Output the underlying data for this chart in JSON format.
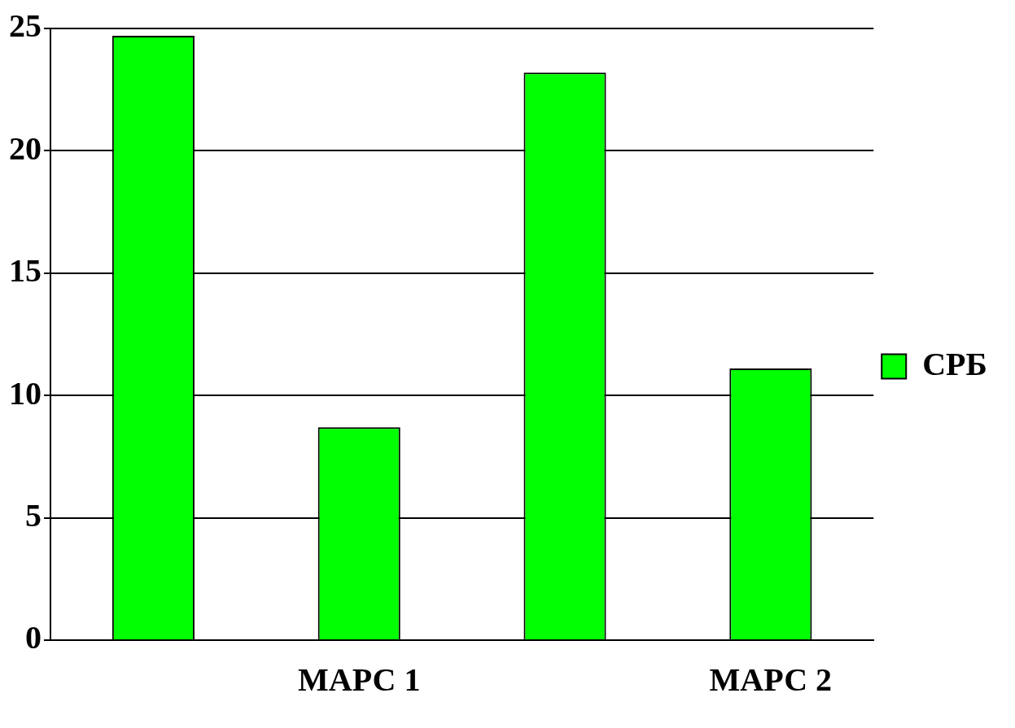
{
  "chart_data": {
    "type": "bar",
    "categories": [
      null,
      "МАРС 1",
      null,
      "МАРС 2"
    ],
    "series": [
      {
        "name": "СРБ",
        "color": "#00ff00",
        "values": [
          24.7,
          8.7,
          23.2,
          11.1
        ]
      }
    ],
    "ylim": [
      0,
      25
    ],
    "yticks": [
      0,
      5,
      10,
      15,
      20,
      25
    ],
    "grid": "y",
    "legend": "right"
  }
}
